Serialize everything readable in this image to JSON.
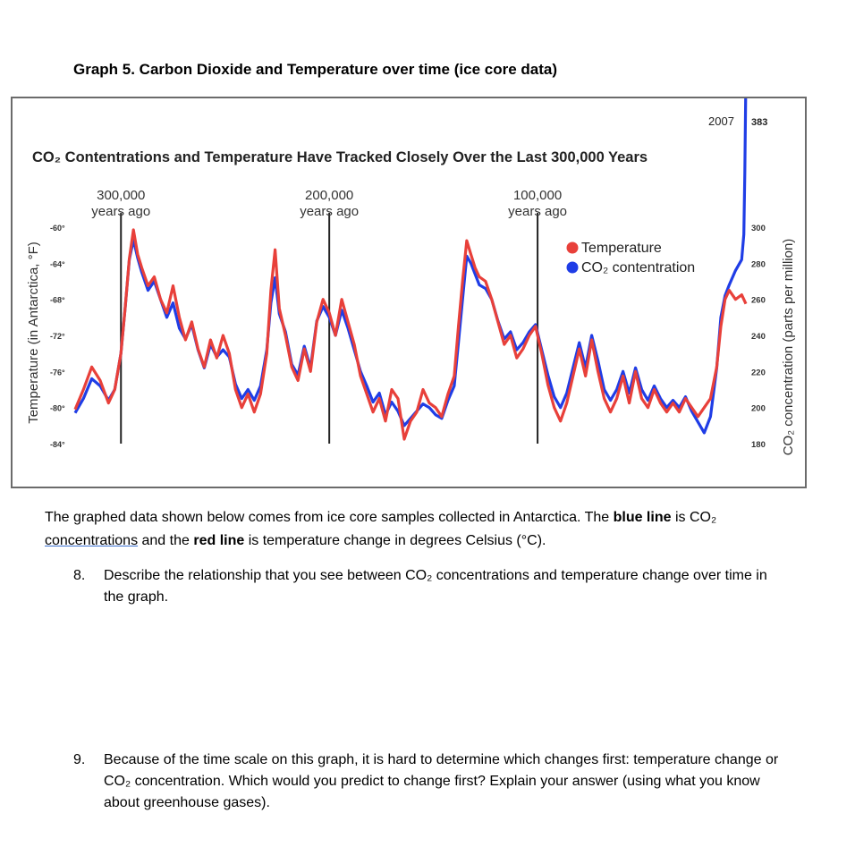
{
  "page": {
    "graph_title": "Graph 5. Carbon Dioxide and Temperature over time (ice core data)",
    "intro_parts": {
      "p1": "The graphed data shown below comes from ice core samples collected in Antarctica.  The ",
      "p2": "blue line",
      "p3": " is CO₂ ",
      "p4": "concentrations",
      "p5": " and the ",
      "p6": "red line",
      "p7": " is temperature change in degrees Celsius (°C)."
    },
    "questions": [
      {
        "number": "8.",
        "text": "Describe the relationship that you see between CO₂ concentrations and temperature change over time in the graph."
      },
      {
        "number": "9.",
        "text": "Because of the time scale on this graph, it is hard to determine which changes first: temperature change or CO₂ concentration.  Which would you predict to change first? Explain your answer (using what you know about greenhouse gases)."
      }
    ]
  },
  "colors": {
    "temperature": "#e8403a",
    "co2": "#1f3de6",
    "frame": "#6b6b6b",
    "marker_line": "#222222"
  },
  "chart_data": {
    "type": "line",
    "title": "CO₂ Contentrations and Temperature Have Tracked Closely Over the Last 300,000 Years",
    "ylabel_left": "Temperature (in Antarctica, °F)",
    "ylabel_right": "CO₂ concentration (parts per million)",
    "y_left_ticks": [
      "-60°",
      "-64°",
      "-68°",
      "-72°",
      "-76°",
      "-80°",
      "-84°"
    ],
    "y_left_lim": [
      -84,
      -60
    ],
    "y_right_ticks": [
      "300",
      "280",
      "260",
      "240",
      "220",
      "200",
      "180"
    ],
    "y_right_lim": [
      180,
      300
    ],
    "x_markers": [
      {
        "label1": "300,000",
        "label2": "years ago",
        "years_ago": 300000
      },
      {
        "label1": "200,000",
        "label2": "years ago",
        "years_ago": 200000
      },
      {
        "label1": "100,000",
        "label2": "years ago",
        "years_ago": 100000
      }
    ],
    "x_lim_years_ago": [
      322000,
      0
    ],
    "end_label_year": "2007",
    "end_label_value": "383",
    "legend": [
      {
        "name": "Temperature",
        "color": "#e8403a"
      },
      {
        "name": "CO₂ contentration",
        "color": "#1f3de6"
      }
    ],
    "legend_position": "top-right",
    "series": [
      {
        "name": "Temperature",
        "axis": "left_F",
        "points": [
          [
            322000,
            -80.2
          ],
          [
            318000,
            -78.0
          ],
          [
            314000,
            -75.5
          ],
          [
            310000,
            -77.0
          ],
          [
            306000,
            -79.5
          ],
          [
            303000,
            -78.0
          ],
          [
            300000,
            -74.0
          ],
          [
            298000,
            -69.0
          ],
          [
            296000,
            -63.5
          ],
          [
            294000,
            -60.3
          ],
          [
            292000,
            -63.0
          ],
          [
            290000,
            -64.5
          ],
          [
            287000,
            -66.5
          ],
          [
            284000,
            -65.5
          ],
          [
            281000,
            -68.0
          ],
          [
            278000,
            -69.5
          ],
          [
            275000,
            -66.5
          ],
          [
            272000,
            -70.0
          ],
          [
            269000,
            -72.5
          ],
          [
            266000,
            -70.5
          ],
          [
            263000,
            -73.5
          ],
          [
            260000,
            -75.5
          ],
          [
            257000,
            -72.5
          ],
          [
            254000,
            -74.5
          ],
          [
            251000,
            -72.0
          ],
          [
            248000,
            -74.0
          ],
          [
            245000,
            -78.0
          ],
          [
            242000,
            -80.0
          ],
          [
            239000,
            -78.5
          ],
          [
            236000,
            -80.5
          ],
          [
            233000,
            -78.5
          ],
          [
            230000,
            -74.0
          ],
          [
            228000,
            -67.0
          ],
          [
            226000,
            -62.5
          ],
          [
            224000,
            -69.0
          ],
          [
            221000,
            -72.0
          ],
          [
            218000,
            -75.5
          ],
          [
            215000,
            -77.0
          ],
          [
            212000,
            -73.5
          ],
          [
            209000,
            -76.0
          ],
          [
            206000,
            -70.5
          ],
          [
            203000,
            -68.0
          ],
          [
            200000,
            -69.5
          ],
          [
            197000,
            -72.0
          ],
          [
            194000,
            -68.0
          ],
          [
            191000,
            -70.5
          ],
          [
            188000,
            -73.0
          ],
          [
            185000,
            -76.5
          ],
          [
            182000,
            -78.5
          ],
          [
            179000,
            -80.5
          ],
          [
            176000,
            -79.0
          ],
          [
            173000,
            -81.5
          ],
          [
            170000,
            -78.0
          ],
          [
            167000,
            -79.0
          ],
          [
            164000,
            -83.5
          ],
          [
            161000,
            -81.5
          ],
          [
            158000,
            -80.5
          ],
          [
            155000,
            -78.0
          ],
          [
            152000,
            -79.5
          ],
          [
            149000,
            -80.0
          ],
          [
            146000,
            -81.0
          ],
          [
            143000,
            -78.5
          ],
          [
            140000,
            -76.5
          ],
          [
            138000,
            -71.0
          ],
          [
            136000,
            -66.0
          ],
          [
            134000,
            -61.5
          ],
          [
            132000,
            -63.0
          ],
          [
            130000,
            -64.5
          ],
          [
            128000,
            -65.5
          ],
          [
            125000,
            -66.0
          ],
          [
            122000,
            -68.0
          ],
          [
            119000,
            -70.5
          ],
          [
            116000,
            -73.0
          ],
          [
            113000,
            -72.0
          ],
          [
            110000,
            -74.5
          ],
          [
            107000,
            -73.5
          ],
          [
            104000,
            -72.0
          ],
          [
            101000,
            -71.0
          ],
          [
            98000,
            -74.0
          ],
          [
            95000,
            -77.5
          ],
          [
            92000,
            -80.0
          ],
          [
            89000,
            -81.5
          ],
          [
            86000,
            -79.5
          ],
          [
            83000,
            -76.5
          ],
          [
            80000,
            -73.5
          ],
          [
            77000,
            -76.5
          ],
          [
            74000,
            -72.5
          ],
          [
            71000,
            -76.0
          ],
          [
            68000,
            -79.0
          ],
          [
            65000,
            -80.5
          ],
          [
            62000,
            -79.0
          ],
          [
            59000,
            -76.5
          ],
          [
            56000,
            -79.5
          ],
          [
            53000,
            -76.0
          ],
          [
            50000,
            -79.0
          ],
          [
            47000,
            -80.0
          ],
          [
            44000,
            -78.0
          ],
          [
            41000,
            -79.5
          ],
          [
            38000,
            -80.5
          ],
          [
            35000,
            -79.5
          ],
          [
            32000,
            -80.5
          ],
          [
            29000,
            -79.0
          ],
          [
            26000,
            -80.0
          ],
          [
            23000,
            -81.0
          ],
          [
            20000,
            -80.0
          ],
          [
            17000,
            -79.0
          ],
          [
            14000,
            -75.5
          ],
          [
            12000,
            -71.0
          ],
          [
            10000,
            -68.0
          ],
          [
            8000,
            -67.0
          ],
          [
            5000,
            -68.0
          ],
          [
            2000,
            -67.5
          ],
          [
            0,
            -68.5
          ]
        ]
      },
      {
        "name": "CO₂ contentration",
        "axis": "right_ppm",
        "points": [
          [
            322000,
            197
          ],
          [
            318000,
            205
          ],
          [
            314000,
            216
          ],
          [
            310000,
            212
          ],
          [
            306000,
            204
          ],
          [
            303000,
            210
          ],
          [
            300000,
            230
          ],
          [
            298000,
            255
          ],
          [
            296000,
            282
          ],
          [
            294000,
            293
          ],
          [
            292000,
            283
          ],
          [
            290000,
            275
          ],
          [
            287000,
            265
          ],
          [
            284000,
            270
          ],
          [
            281000,
            260
          ],
          [
            278000,
            250
          ],
          [
            275000,
            258
          ],
          [
            272000,
            244
          ],
          [
            269000,
            238
          ],
          [
            266000,
            246
          ],
          [
            263000,
            232
          ],
          [
            260000,
            222
          ],
          [
            257000,
            235
          ],
          [
            254000,
            228
          ],
          [
            251000,
            232
          ],
          [
            248000,
            228
          ],
          [
            245000,
            213
          ],
          [
            242000,
            205
          ],
          [
            239000,
            210
          ],
          [
            236000,
            204
          ],
          [
            233000,
            212
          ],
          [
            230000,
            232
          ],
          [
            228000,
            258
          ],
          [
            226000,
            272
          ],
          [
            224000,
            252
          ],
          [
            221000,
            242
          ],
          [
            218000,
            224
          ],
          [
            215000,
            218
          ],
          [
            212000,
            234
          ],
          [
            209000,
            222
          ],
          [
            206000,
            248
          ],
          [
            203000,
            256
          ],
          [
            200000,
            250
          ],
          [
            197000,
            240
          ],
          [
            194000,
            254
          ],
          [
            191000,
            244
          ],
          [
            188000,
            232
          ],
          [
            185000,
            220
          ],
          [
            182000,
            212
          ],
          [
            179000,
            203
          ],
          [
            176000,
            208
          ],
          [
            173000,
            196
          ],
          [
            170000,
            203
          ],
          [
            167000,
            198
          ],
          [
            164000,
            190
          ],
          [
            161000,
            194
          ],
          [
            158000,
            198
          ],
          [
            155000,
            202
          ],
          [
            152000,
            200
          ],
          [
            149000,
            196
          ],
          [
            146000,
            194
          ],
          [
            143000,
            204
          ],
          [
            140000,
            212
          ],
          [
            138000,
            236
          ],
          [
            136000,
            260
          ],
          [
            134000,
            284
          ],
          [
            132000,
            280
          ],
          [
            130000,
            274
          ],
          [
            128000,
            268
          ],
          [
            125000,
            266
          ],
          [
            122000,
            260
          ],
          [
            119000,
            248
          ],
          [
            116000,
            238
          ],
          [
            113000,
            242
          ],
          [
            110000,
            232
          ],
          [
            107000,
            236
          ],
          [
            104000,
            242
          ],
          [
            101000,
            246
          ],
          [
            98000,
            232
          ],
          [
            95000,
            218
          ],
          [
            92000,
            206
          ],
          [
            89000,
            200
          ],
          [
            86000,
            208
          ],
          [
            83000,
            222
          ],
          [
            80000,
            236
          ],
          [
            77000,
            222
          ],
          [
            74000,
            240
          ],
          [
            71000,
            226
          ],
          [
            68000,
            210
          ],
          [
            65000,
            204
          ],
          [
            62000,
            210
          ],
          [
            59000,
            220
          ],
          [
            56000,
            208
          ],
          [
            53000,
            222
          ],
          [
            50000,
            210
          ],
          [
            47000,
            204
          ],
          [
            44000,
            212
          ],
          [
            41000,
            205
          ],
          [
            38000,
            200
          ],
          [
            35000,
            204
          ],
          [
            32000,
            200
          ],
          [
            29000,
            206
          ],
          [
            26000,
            198
          ],
          [
            23000,
            192
          ],
          [
            20000,
            186
          ],
          [
            17000,
            195
          ],
          [
            14000,
            222
          ],
          [
            12000,
            250
          ],
          [
            10000,
            262
          ],
          [
            8000,
            268
          ],
          [
            5000,
            276
          ],
          [
            2000,
            282
          ],
          [
            1000,
            296
          ],
          [
            500,
            330
          ],
          [
            0,
            383
          ]
        ]
      }
    ]
  }
}
